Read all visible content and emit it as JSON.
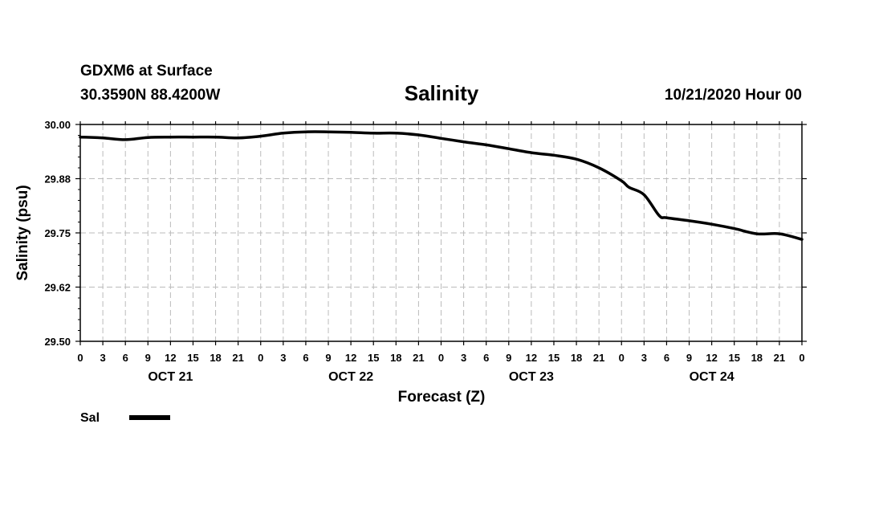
{
  "header": {
    "station": "GDXM6 at Surface",
    "coords": "30.3590N 88.4200W",
    "datetime": "10/21/2020 Hour 00"
  },
  "chart_data": {
    "type": "line",
    "title": "Salinity",
    "xlabel": "Forecast (Z)",
    "ylabel": "Salinity (psu)",
    "ylim": [
      29.5,
      30.0
    ],
    "yticks": [
      "30.00",
      "29.88",
      "29.75",
      "29.62",
      "29.50"
    ],
    "ytick_values": [
      30.0,
      29.875,
      29.75,
      29.625,
      29.5
    ],
    "xlim": [
      0,
      96
    ],
    "xtick_labels": [
      "0",
      "3",
      "6",
      "9",
      "12",
      "15",
      "18",
      "21",
      "0",
      "3",
      "6",
      "9",
      "12",
      "15",
      "18",
      "21",
      "0",
      "3",
      "6",
      "9",
      "12",
      "15",
      "18",
      "21",
      "0",
      "3",
      "6",
      "9",
      "12",
      "15",
      "18",
      "21",
      "0"
    ],
    "day_labels": [
      {
        "label": "OCT 21",
        "hour": 12
      },
      {
        "label": "OCT 22",
        "hour": 36
      },
      {
        "label": "OCT 23",
        "hour": 60
      },
      {
        "label": "OCT 24",
        "hour": 84
      }
    ],
    "grid": true,
    "legend_position": "bottom-left",
    "series": [
      {
        "name": "Sal",
        "color": "#000000",
        "x": [
          0,
          3,
          6,
          9,
          12,
          15,
          18,
          21,
          24,
          27,
          30,
          33,
          36,
          39,
          42,
          45,
          48,
          51,
          54,
          57,
          60,
          63,
          66,
          69,
          72,
          73,
          75,
          77,
          78,
          81,
          84,
          87,
          90,
          93,
          96
        ],
        "values": [
          29.971,
          29.969,
          29.965,
          29.97,
          29.971,
          29.971,
          29.971,
          29.969,
          29.973,
          29.98,
          29.983,
          29.983,
          29.982,
          29.98,
          29.98,
          29.976,
          29.968,
          29.96,
          29.953,
          29.944,
          29.935,
          29.929,
          29.92,
          29.9,
          29.87,
          29.855,
          29.838,
          29.79,
          29.785,
          29.778,
          29.77,
          29.76,
          29.748,
          29.748,
          29.735
        ]
      }
    ]
  }
}
